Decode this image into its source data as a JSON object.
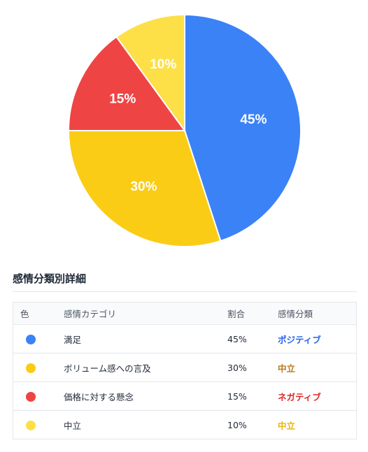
{
  "chart_data": {
    "type": "pie",
    "slices": [
      {
        "label": "満足",
        "value": 45,
        "color": "#3b82f6",
        "display": "45%"
      },
      {
        "label": "ボリューム感への言及",
        "value": 30,
        "color": "#facc15",
        "display": "30%"
      },
      {
        "label": "価格に対する懸念",
        "value": 15,
        "color": "#ef4444",
        "display": "15%"
      },
      {
        "label": "中立",
        "value": 10,
        "color": "#fde047",
        "display": "10%"
      }
    ]
  },
  "details": {
    "title": "感情分類別詳細",
    "headers": {
      "color": "色",
      "category": "感情カテゴリ",
      "ratio": "割合",
      "sentiment": "感情分類"
    },
    "rows": [
      {
        "dot_color": "#3b82f6",
        "category": "満足",
        "ratio": "45%",
        "sentiment": "ポジティブ",
        "sentiment_color": "#2563eb"
      },
      {
        "dot_color": "#facc15",
        "category": "ボリューム感への言及",
        "ratio": "30%",
        "sentiment": "中立",
        "sentiment_color": "#b7791f"
      },
      {
        "dot_color": "#ef4444",
        "category": "価格に対する懸念",
        "ratio": "15%",
        "sentiment": "ネガティブ",
        "sentiment_color": "#dc2626"
      },
      {
        "dot_color": "#fde047",
        "category": "中立",
        "ratio": "10%",
        "sentiment": "中立",
        "sentiment_color": "#eab308"
      }
    ]
  }
}
